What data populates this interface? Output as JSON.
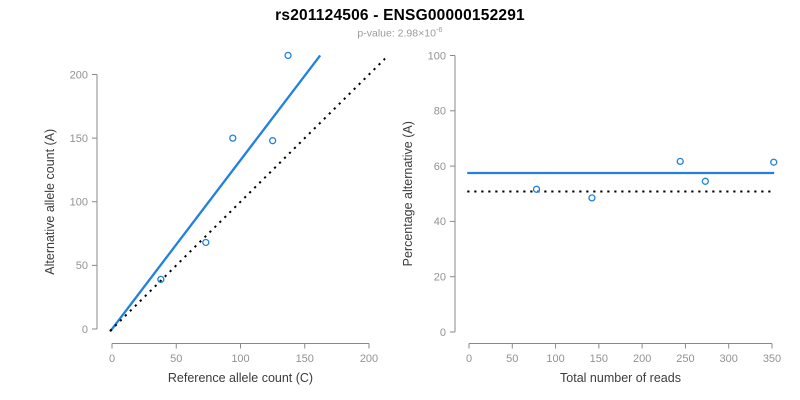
{
  "figure": {
    "title": "rs201124506 - ENSG00000152291",
    "p_value_text": "p-value: 2.98×10",
    "p_value_exponent": "-6"
  },
  "colors": {
    "accent_blue": "#2181dd",
    "axis_line_gray": "#898989",
    "tick_label_gray": "#929292",
    "axis_title_dark": "#3c3c3c",
    "dotted_line_black": "#000000",
    "title_black": "#000000",
    "subtitle_gray": "#9b9b9b"
  },
  "chart_data": [
    {
      "name": "allele-count-scatter",
      "type": "scatter",
      "xlabel": "Reference allele count (C)",
      "ylabel": "Alternative allele count (A)",
      "xlim": [
        0,
        200
      ],
      "ylim": [
        0,
        200
      ],
      "xticks": [
        0,
        50,
        100,
        150,
        200
      ],
      "yticks": [
        0,
        50,
        100,
        150,
        200
      ],
      "grid": false,
      "points": [
        [
          38,
          39
        ],
        [
          73,
          68
        ],
        [
          94,
          150
        ],
        [
          125,
          148
        ],
        [
          137,
          215
        ]
      ],
      "lines": [
        {
          "name": "fitted-proportion-line",
          "style": "solid",
          "color_key": "accent_blue",
          "from": [
            -1.5,
            -2
          ],
          "to": [
            162,
            215
          ]
        },
        {
          "name": "identity-line",
          "style": "dotted",
          "color_key": "dotted_line_black",
          "from": [
            -1.5,
            -1.5
          ],
          "to": [
            212.5,
            212.5
          ]
        }
      ]
    },
    {
      "name": "percentage-vs-reads-scatter",
      "type": "scatter",
      "xlabel": "Total number of reads",
      "ylabel": "Percentage alternative (A)",
      "xlim": [
        0,
        350
      ],
      "ylim": [
        0,
        100
      ],
      "xticks": [
        0,
        50,
        100,
        150,
        200,
        250,
        300,
        350
      ],
      "yticks": [
        0,
        20,
        40,
        60,
        80,
        100
      ],
      "grid": false,
      "points": [
        [
          78,
          51.6
        ],
        [
          142,
          48.5
        ],
        [
          244,
          61.7
        ],
        [
          273,
          54.5
        ],
        [
          352,
          61.4
        ]
      ],
      "lines": [
        {
          "name": "mean-percentage-line",
          "style": "solid",
          "color_key": "accent_blue",
          "from": [
            -2,
            57.5
          ],
          "to": [
            352.5,
            57.5
          ]
        },
        {
          "name": "fifty-percent-line",
          "style": "dotted",
          "color_key": "dotted_line_black",
          "from": [
            -2,
            50.8
          ],
          "to": [
            351,
            50.8
          ]
        }
      ]
    }
  ]
}
